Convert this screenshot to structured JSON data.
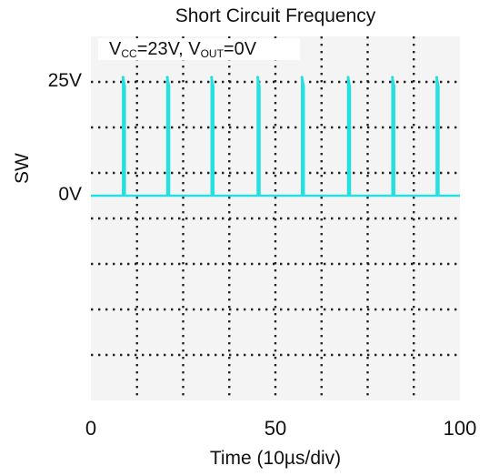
{
  "chart_data": {
    "type": "line",
    "title": "Short Circuit Frequency",
    "condition": {
      "vcc_label": "V",
      "vcc_sub": "CC",
      "vcc_value": "=23V, ",
      "vout_label": "V",
      "vout_sub": "OUT",
      "vout_value": "=0V"
    },
    "xlabel": "Time (10µs/div)",
    "ylabel": "SW",
    "xlim": [
      0,
      100
    ],
    "ylim": [
      -45,
      35
    ],
    "x_ticks": [
      {
        "value": 0,
        "label": "0"
      },
      {
        "value": 50,
        "label": "50"
      },
      {
        "value": 100,
        "label": "100"
      }
    ],
    "y_ticks": [
      {
        "value": 25,
        "label": "25V"
      },
      {
        "value": 0,
        "label": "0V"
      }
    ],
    "grid": true,
    "grid_divisions": {
      "x": 8,
      "y": 8
    },
    "series": [
      {
        "color": "#26e0e0",
        "baseline_v": 0,
        "pulse_peak_v": 26,
        "pulse_times": [
          9,
          21,
          33,
          45.5,
          57.5,
          70,
          82,
          94
        ]
      }
    ],
    "colors": {
      "background": "#f4f4f4",
      "grid": "#222222",
      "trace": "#26e0e0"
    }
  }
}
